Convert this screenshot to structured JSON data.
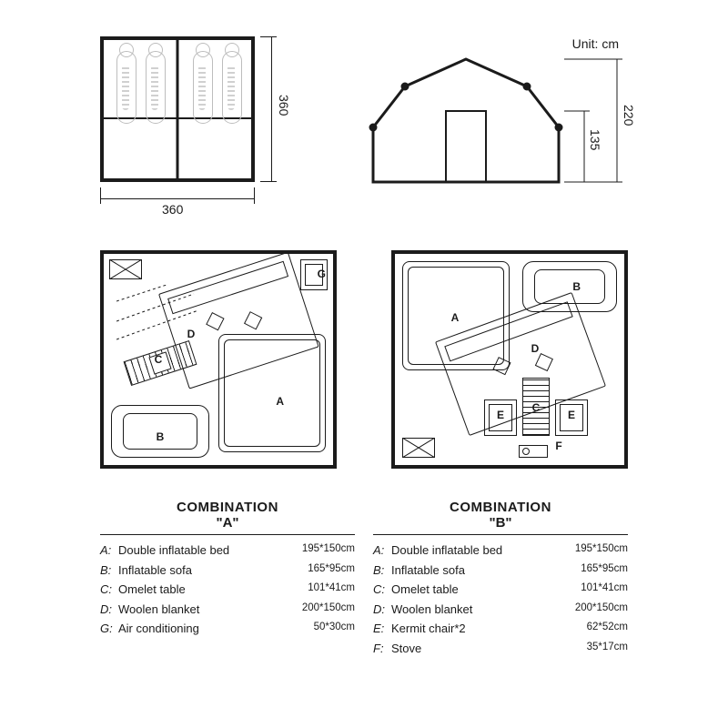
{
  "unit_label": "Unit: cm",
  "floorplan": {
    "width_label": "360",
    "depth_label": "360",
    "border_color": "#1b1b1b",
    "bag_color": "#bdbdbd",
    "bags": 4
  },
  "elevation": {
    "height_label": "220",
    "door_height_label": "135",
    "stroke": "#1b1b1b"
  },
  "layoutA": {
    "labels": {
      "A": "A",
      "B": "B",
      "C": "C",
      "D": "D",
      "G": "G"
    }
  },
  "layoutB": {
    "labels": {
      "A": "A",
      "B": "B",
      "C": "C",
      "D": "D",
      "E": "E",
      "F": "F"
    }
  },
  "comboA": {
    "title": "COMBINATION",
    "sub": "\"A\"",
    "rows": [
      {
        "k": "A:",
        "n": "Double inflatable bed",
        "d": "195*150cm"
      },
      {
        "k": "B:",
        "n": "Inflatable sofa",
        "d": "165*95cm"
      },
      {
        "k": "C:",
        "n": "Omelet table",
        "d": "101*41cm"
      },
      {
        "k": "D:",
        "n": "Woolen blanket",
        "d": "200*150cm"
      },
      {
        "k": "G:",
        "n": "Air conditioning",
        "d": "50*30cm"
      }
    ]
  },
  "comboB": {
    "title": "COMBINATION",
    "sub": "\"B\"",
    "rows": [
      {
        "k": "A:",
        "n": "Double inflatable bed",
        "d": "195*150cm"
      },
      {
        "k": "B:",
        "n": "Inflatable sofa",
        "d": "165*95cm"
      },
      {
        "k": "C:",
        "n": "Omelet table",
        "d": "101*41cm"
      },
      {
        "k": "D:",
        "n": "Woolen blanket",
        "d": "200*150cm"
      },
      {
        "k": "E:",
        "n": "Kermit chair*2",
        "d": "62*52cm"
      },
      {
        "k": "F:",
        "n": "Stove",
        "d": "35*17cm"
      }
    ]
  },
  "colors": {
    "stroke": "#1b1b1b",
    "light": "#bdbdbd",
    "bg": "#ffffff"
  }
}
